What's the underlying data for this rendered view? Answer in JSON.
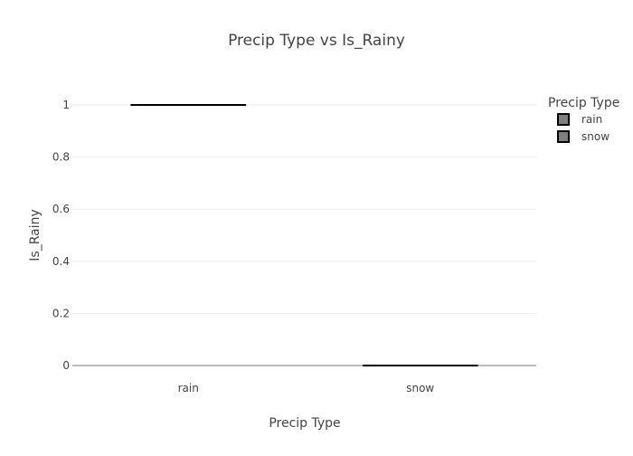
{
  "chart_data": {
    "type": "box",
    "title": "Precip Type vs Is_Rainy",
    "xlabel": "Precip Type",
    "ylabel": "Is_Rainy",
    "categories": [
      "rain",
      "snow"
    ],
    "series": [
      {
        "name": "rain",
        "category": "rain",
        "values": [
          1
        ],
        "median": 1,
        "q1": 1,
        "q3": 1,
        "min": 1,
        "max": 1
      },
      {
        "name": "snow",
        "category": "snow",
        "values": [
          0
        ],
        "median": 0,
        "q1": 0,
        "q3": 0,
        "min": 0,
        "max": 0
      }
    ],
    "ylim": [
      0,
      1
    ],
    "yticks": [
      0,
      0.2,
      0.4,
      0.6,
      0.8,
      1
    ],
    "ytick_labels": [
      "0",
      "0.2",
      "0.4",
      "0.6",
      "0.8",
      "1"
    ],
    "grid": true,
    "legend": {
      "title": "Precip Type",
      "placement": "top-right",
      "entries": [
        "rain",
        "snow"
      ]
    },
    "colors": {
      "box_fill": "#7f7f7f",
      "box_line": "#000000",
      "grid": "#eeeeee",
      "text": "#444444"
    }
  }
}
